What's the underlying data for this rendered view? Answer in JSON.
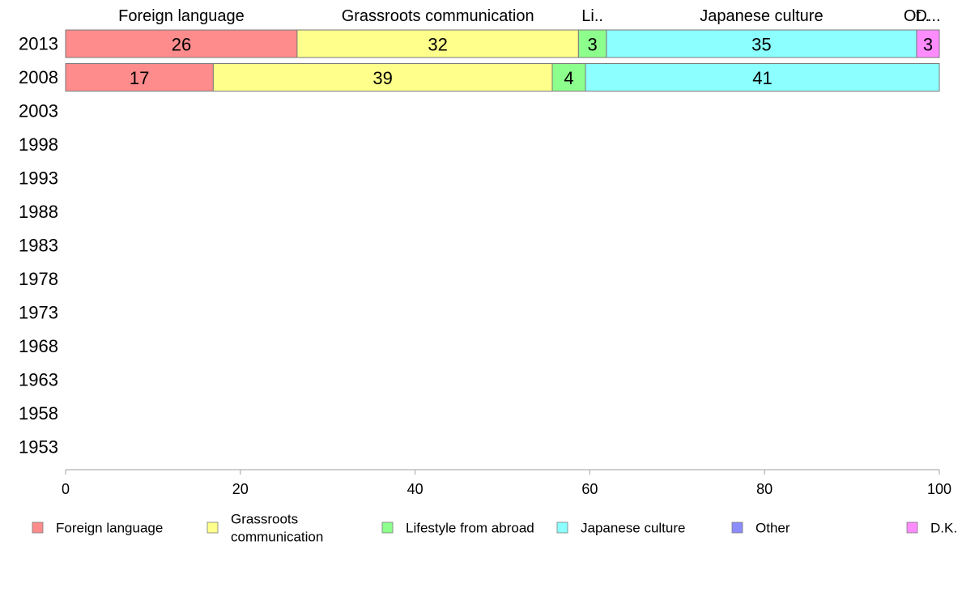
{
  "chart_data": {
    "type": "bar",
    "orientation": "horizontal",
    "stacked": true,
    "title": "",
    "xlabel": "",
    "ylabel": "",
    "xlim": [
      0,
      100
    ],
    "x_ticks": [
      0,
      20,
      40,
      60,
      80,
      100
    ],
    "categories": [
      "2013",
      "2008",
      "2003",
      "1998",
      "1993",
      "1988",
      "1983",
      "1978",
      "1973",
      "1968",
      "1963",
      "1958",
      "1953"
    ],
    "series": [
      {
        "name": "Foreign language",
        "color": "#ff8c8c",
        "values": [
          26.5,
          16.9,
          null,
          null,
          null,
          null,
          null,
          null,
          null,
          null,
          null,
          null,
          null
        ],
        "labels": [
          "26",
          "17"
        ]
      },
      {
        "name": "Grassroots communication",
        "color": "#ffff8c",
        "values": [
          32.2,
          38.8,
          null,
          null,
          null,
          null,
          null,
          null,
          null,
          null,
          null,
          null,
          null
        ],
        "labels": [
          "32",
          "39"
        ]
      },
      {
        "name": "Lifestyle from abroad",
        "color": "#8cff8c",
        "values": [
          3.2,
          3.8,
          null,
          null,
          null,
          null,
          null,
          null,
          null,
          null,
          null,
          null,
          null
        ],
        "labels": [
          "3",
          "4"
        ]
      },
      {
        "name": "Japanese culture",
        "color": "#8cffff",
        "values": [
          35.5,
          40.5,
          null,
          null,
          null,
          null,
          null,
          null,
          null,
          null,
          null,
          null,
          null
        ],
        "labels": [
          "35",
          "41"
        ]
      },
      {
        "name": "Other",
        "color": "#8c8cff",
        "values": [
          0,
          0,
          null,
          null,
          null,
          null,
          null,
          null,
          null,
          null,
          null,
          null,
          null
        ],
        "labels": [
          "",
          ""
        ]
      },
      {
        "name": "D.K.",
        "color": "#ff8cff",
        "values": [
          2.6,
          0,
          null,
          null,
          null,
          null,
          null,
          null,
          null,
          null,
          null,
          null,
          null
        ],
        "labels": [
          "3",
          ""
        ]
      }
    ],
    "top_labels": [
      "Foreign language",
      "Grassroots communication",
      "Li..",
      "Japanese culture",
      "Ot..",
      "D..."
    ],
    "legend": {
      "placement": "bottom",
      "entries": [
        {
          "lines": [
            "Foreign language"
          ],
          "color": "#ff8c8c"
        },
        {
          "lines": [
            "Grassroots",
            "communication"
          ],
          "color": "#ffff8c"
        },
        {
          "lines": [
            "Lifestyle from abroad"
          ],
          "color": "#8cff8c"
        },
        {
          "lines": [
            "Japanese culture"
          ],
          "color": "#8cffff"
        },
        {
          "lines": [
            "Other"
          ],
          "color": "#8c8cff"
        },
        {
          "lines": [
            "D.K."
          ],
          "color": "#ff8cff"
        }
      ]
    },
    "grid": false
  }
}
